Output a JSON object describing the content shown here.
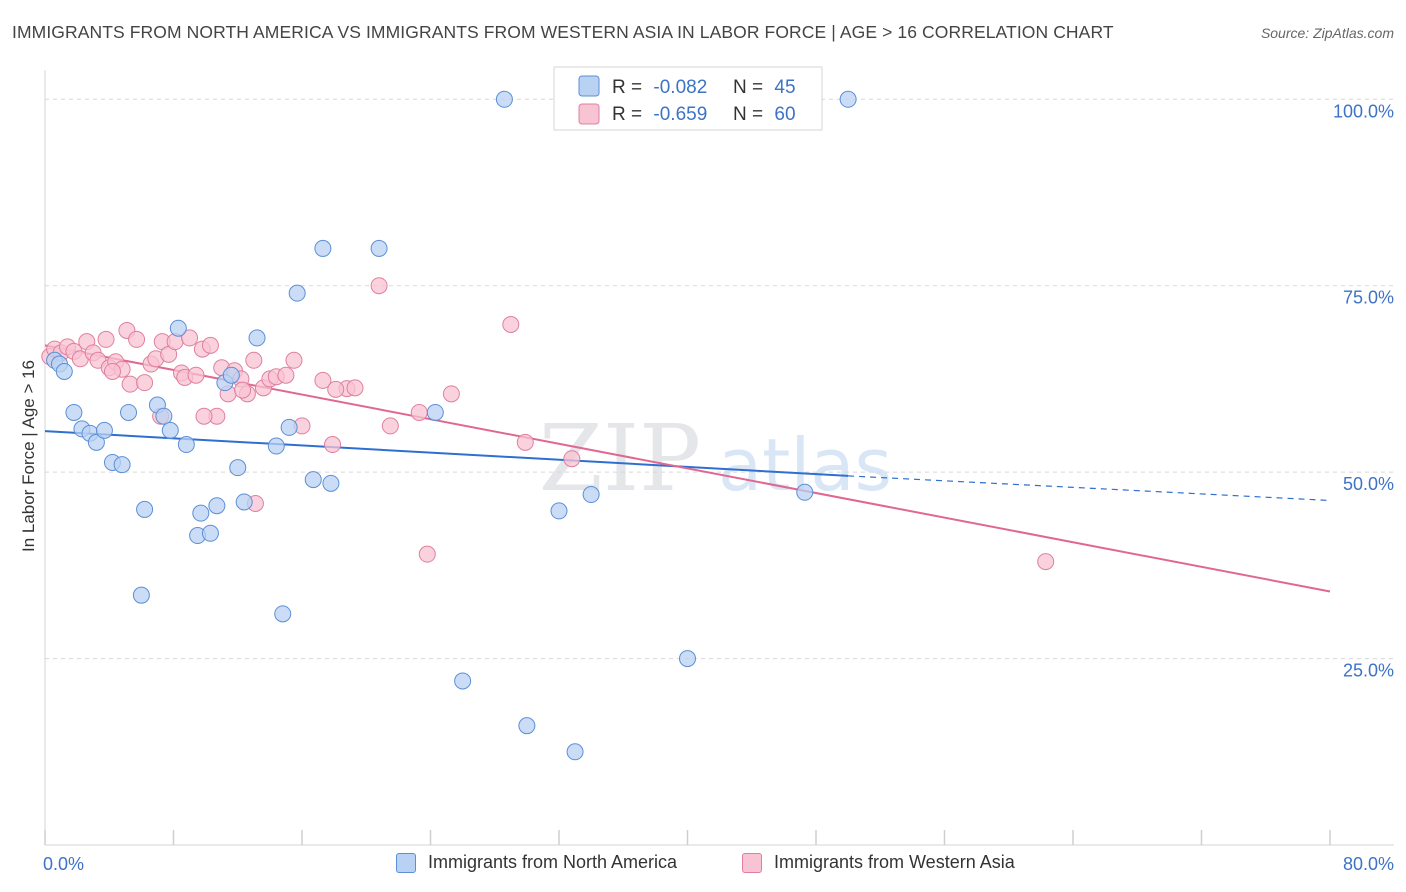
{
  "title": "IMMIGRANTS FROM NORTH AMERICA VS IMMIGRANTS FROM WESTERN ASIA IN LABOR FORCE | AGE > 16 CORRELATION CHART",
  "source": "Source: ZipAtlas.com",
  "watermark": {
    "zip": "ZIP",
    "atlas": "atlas"
  },
  "colors": {
    "blue_fill": "#b9d2f3",
    "blue_stroke": "#5b8fd6",
    "blue_line": "#2f6fcf",
    "pink_fill": "#f8c3d3",
    "pink_stroke": "#e07fa0",
    "pink_line": "#e06890",
    "value_text": "#3d73c6",
    "grid": "#d8d8d8"
  },
  "legend_top": {
    "r_label": "R =",
    "n_label": "N =",
    "rows": [
      {
        "r": "-0.082",
        "n": "45"
      },
      {
        "r": "-0.659",
        "n": "60"
      }
    ]
  },
  "chart_data": {
    "type": "scatter",
    "title": "IMMIGRANTS FROM NORTH AMERICA VS IMMIGRANTS FROM WESTERN ASIA IN LABOR FORCE | AGE > 16 CORRELATION CHART",
    "xlabel": "",
    "ylabel": "In Labor Force | Age > 16",
    "xlim": [
      0,
      80
    ],
    "ylim": [
      0,
      105
    ],
    "x_tick_labels": [
      "0.0%",
      "80.0%"
    ],
    "y_tick_labels": [
      "100.0%",
      "75.0%",
      "50.0%",
      "25.0%"
    ],
    "y_ticks": [
      100,
      75,
      50,
      25
    ],
    "grid": true,
    "legend_position": "top-center",
    "series": [
      {
        "name": "Immigrants from North America",
        "r": -0.082,
        "n": 45,
        "trend": {
          "x0": 0,
          "y0": 55.5,
          "x1": 50,
          "y1": 49.5,
          "dashed_to_x": 80,
          "dashed_to_y": 46.2
        },
        "points": [
          [
            0.6,
            65.0
          ],
          [
            0.9,
            64.5
          ],
          [
            1.2,
            63.5
          ],
          [
            1.8,
            58.0
          ],
          [
            2.3,
            55.8
          ],
          [
            2.8,
            55.2
          ],
          [
            3.2,
            54.0
          ],
          [
            3.7,
            55.6
          ],
          [
            4.2,
            51.3
          ],
          [
            4.8,
            51.0
          ],
          [
            5.2,
            58.0
          ],
          [
            6.2,
            45.0
          ],
          [
            7.0,
            59.0
          ],
          [
            7.4,
            57.5
          ],
          [
            7.8,
            55.6
          ],
          [
            8.3,
            69.3
          ],
          [
            8.8,
            53.7
          ],
          [
            9.5,
            41.5
          ],
          [
            9.7,
            44.5
          ],
          [
            10.3,
            41.8
          ],
          [
            10.7,
            45.5
          ],
          [
            11.2,
            62.0
          ],
          [
            11.6,
            63.0
          ],
          [
            12.0,
            50.6
          ],
          [
            12.4,
            46.0
          ],
          [
            13.2,
            68.0
          ],
          [
            14.4,
            53.5
          ],
          [
            14.8,
            31.0
          ],
          [
            15.2,
            56.0
          ],
          [
            15.7,
            74.0
          ],
          [
            16.7,
            49.0
          ],
          [
            17.3,
            80.0
          ],
          [
            17.8,
            48.5
          ],
          [
            20.8,
            80.0
          ],
          [
            24.3,
            58.0
          ],
          [
            26.0,
            22.0
          ],
          [
            28.6,
            100.0
          ],
          [
            30.0,
            16.0
          ],
          [
            32.0,
            44.8
          ],
          [
            33.0,
            12.5
          ],
          [
            34.0,
            47.0
          ],
          [
            40.0,
            25.0
          ],
          [
            50.0,
            100.0
          ],
          [
            47.3,
            47.3
          ],
          [
            6.0,
            33.5
          ]
        ]
      },
      {
        "name": "Immigrants from Western Asia",
        "r": -0.659,
        "n": 60,
        "trend": {
          "x0": 0,
          "y0": 67.0,
          "x1": 80,
          "y1": 34.0
        },
        "points": [
          [
            0.3,
            65.5
          ],
          [
            0.6,
            66.5
          ],
          [
            1.0,
            66.0
          ],
          [
            1.4,
            66.8
          ],
          [
            1.8,
            66.2
          ],
          [
            2.2,
            65.2
          ],
          [
            2.6,
            67.5
          ],
          [
            3.0,
            66.0
          ],
          [
            3.3,
            65.0
          ],
          [
            3.8,
            67.8
          ],
          [
            4.0,
            64.0
          ],
          [
            4.4,
            64.8
          ],
          [
            4.8,
            63.8
          ],
          [
            5.1,
            69.0
          ],
          [
            5.3,
            61.8
          ],
          [
            5.7,
            67.8
          ],
          [
            6.2,
            62.0
          ],
          [
            6.6,
            64.5
          ],
          [
            6.9,
            65.2
          ],
          [
            7.3,
            67.5
          ],
          [
            7.7,
            65.8
          ],
          [
            8.1,
            67.5
          ],
          [
            8.5,
            63.3
          ],
          [
            8.7,
            62.7
          ],
          [
            9.0,
            68.0
          ],
          [
            9.4,
            63.0
          ],
          [
            9.8,
            66.5
          ],
          [
            10.3,
            67.0
          ],
          [
            10.7,
            57.5
          ],
          [
            11.0,
            64.0
          ],
          [
            11.4,
            60.5
          ],
          [
            11.8,
            63.6
          ],
          [
            12.2,
            62.5
          ],
          [
            12.6,
            60.5
          ],
          [
            13.0,
            65.0
          ],
          [
            13.6,
            61.3
          ],
          [
            14.0,
            62.5
          ],
          [
            14.4,
            62.8
          ],
          [
            15.0,
            63.0
          ],
          [
            15.5,
            65.0
          ],
          [
            16.0,
            56.2
          ],
          [
            17.3,
            62.3
          ],
          [
            17.9,
            53.7
          ],
          [
            18.8,
            61.2
          ],
          [
            19.3,
            61.3
          ],
          [
            20.8,
            75.0
          ],
          [
            21.5,
            56.2
          ],
          [
            23.3,
            58.0
          ],
          [
            23.8,
            39.0
          ],
          [
            25.3,
            60.5
          ],
          [
            29.0,
            69.8
          ],
          [
            29.9,
            54.0
          ],
          [
            32.8,
            51.8
          ],
          [
            13.1,
            45.8
          ],
          [
            9.9,
            57.5
          ],
          [
            18.1,
            61.1
          ],
          [
            7.2,
            57.5
          ],
          [
            62.3,
            38.0
          ],
          [
            12.3,
            61.0
          ],
          [
            4.2,
            63.5
          ]
        ]
      }
    ]
  }
}
